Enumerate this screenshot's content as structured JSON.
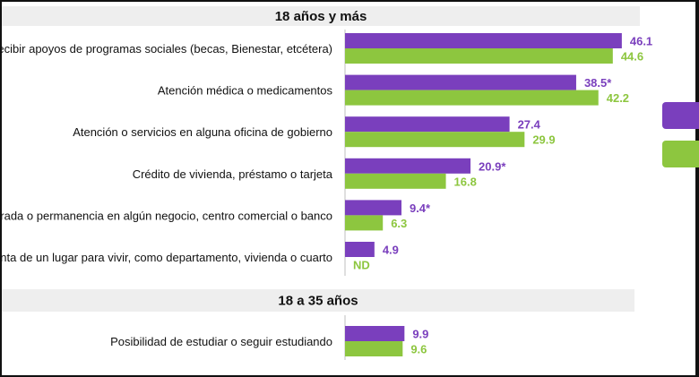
{
  "colors": {
    "series_1": "#7a3fbd",
    "series_2": "#8dc63f",
    "header_band": "#eeeeee"
  },
  "chart_data": {
    "type": "bar",
    "orientation": "horizontal",
    "legend": "right (partially visible, color swatches only)",
    "xlim": [
      0,
      50
    ],
    "groups": [
      {
        "title": "18 años y más",
        "categories": [
          "Recibir apoyos de programas sociales (becas, Bienestar, etcétera)",
          "Atención médica o medicamentos",
          "Atención o servicios en alguna oficina de gobierno",
          "Crédito de vivienda, préstamo o tarjeta",
          "ntrada o permanencia en algún negocio, centro comercial o banco",
          "Renta de un lugar para vivir, como departamento, vivienda o cuarto"
        ],
        "series": [
          {
            "values": [
              46.1,
              38.5,
              27.4,
              20.9,
              9.4,
              4.9
            ],
            "labels": [
              "46.1",
              "38.5*",
              "27.4",
              "20.9*",
              "9.4*",
              "4.9"
            ]
          },
          {
            "values": [
              44.6,
              42.2,
              29.9,
              16.8,
              6.3,
              null
            ],
            "labels": [
              "44.6",
              "42.2",
              "29.9",
              "16.8",
              "6.3",
              "ND"
            ]
          }
        ]
      },
      {
        "title": "18 a 35 años",
        "categories": [
          "Posibilidad de estudiar o seguir estudiando"
        ],
        "series": [
          {
            "values": [
              9.9
            ],
            "labels": [
              "9.9"
            ]
          },
          {
            "values": [
              9.6
            ],
            "labels": [
              "9.6"
            ]
          }
        ]
      }
    ]
  }
}
